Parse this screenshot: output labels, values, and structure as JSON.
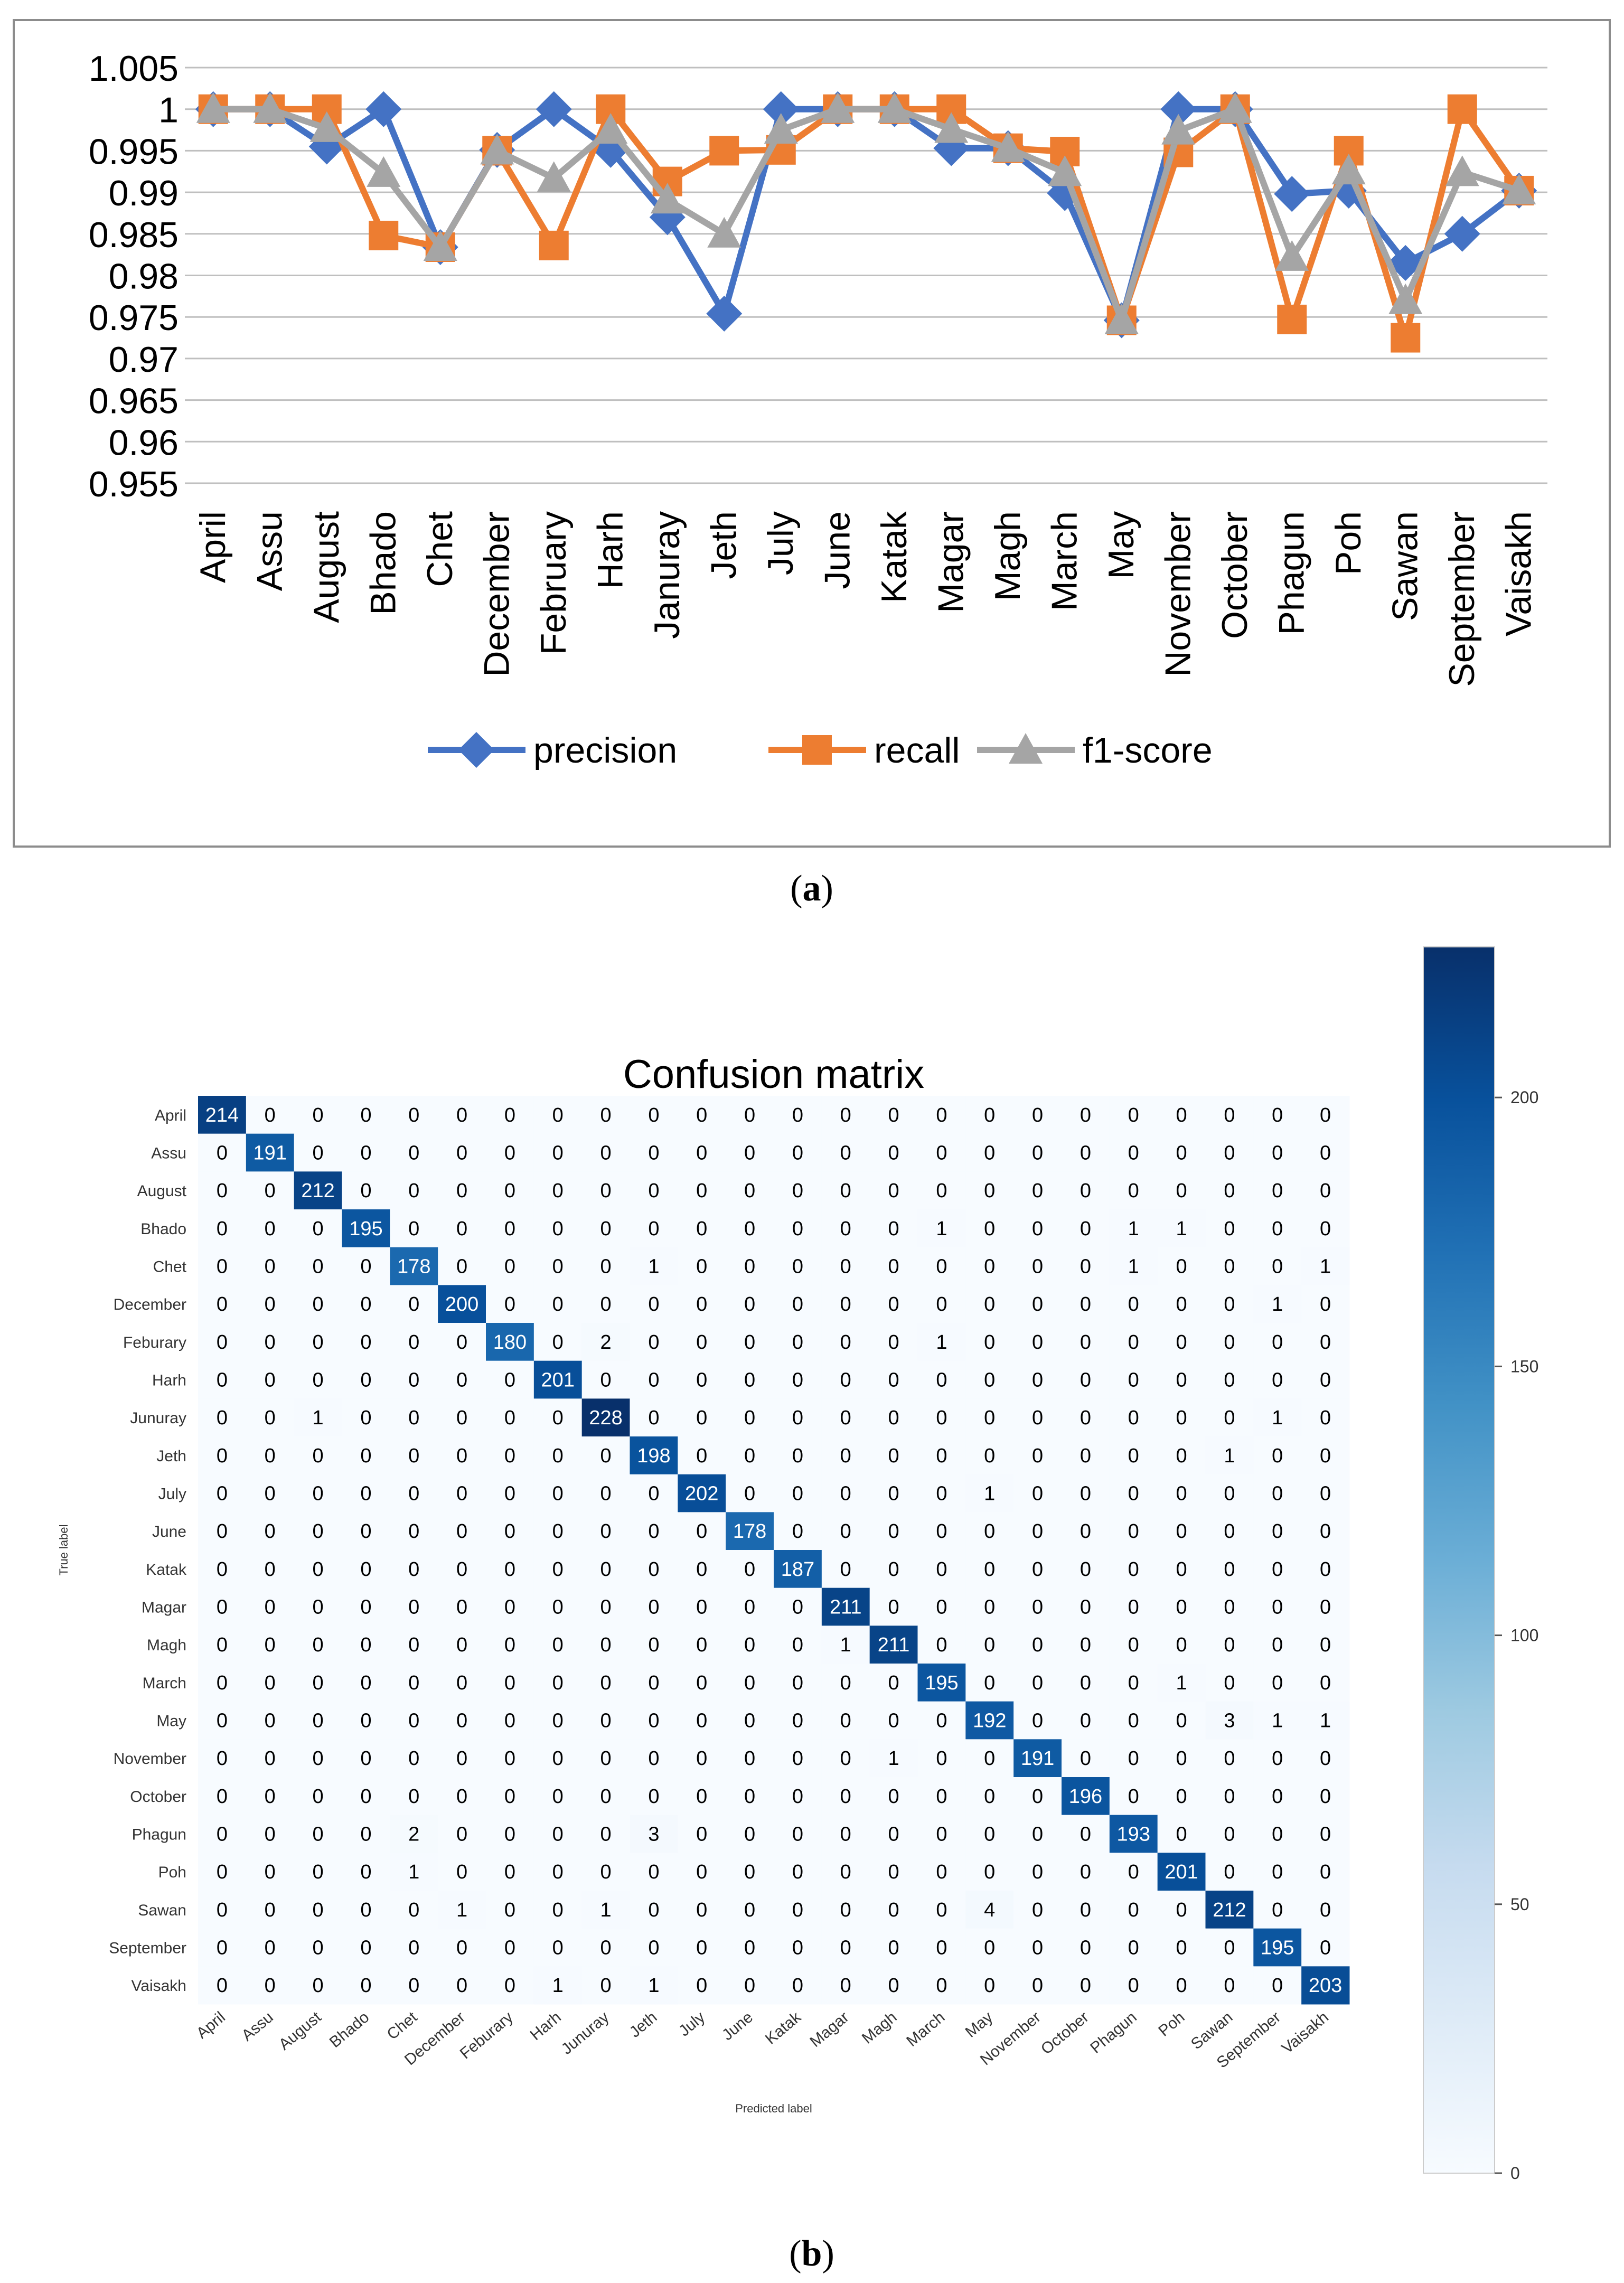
{
  "panel_a": {
    "caption_prefix": "(",
    "caption_letter": "a",
    "caption_suffix": ")"
  },
  "panel_b": {
    "caption_prefix": "(",
    "caption_letter": "b",
    "caption_suffix": ")"
  },
  "colors": {
    "precision": "#4472C4",
    "recall": "#ED7D31",
    "f1": "#A5A5A5",
    "gridline": "#BFBFBF",
    "frame": "#8C8C8C",
    "cm_low": "#F7FBFF",
    "cm_mid": "#6BAED6",
    "cm_high": "#08306B"
  },
  "chart_data": [
    {
      "type": "line",
      "title": "",
      "xlabel": "",
      "ylabel": "",
      "categories": [
        "April",
        "Assu",
        "August",
        "Bhado",
        "Chet",
        "December",
        "February",
        "Harh",
        "Januray",
        "Jeth",
        "July",
        "June",
        "Katak",
        "Magar",
        "Magh",
        "March",
        "May",
        "November",
        "October",
        "Phagun",
        "Poh",
        "Sawan",
        "September",
        "Vaisakh"
      ],
      "ylim": [
        0.955,
        1.005
      ],
      "yticks": [
        "0.955",
        "0.96",
        "0.965",
        "0.97",
        "0.975",
        "0.98",
        "0.985",
        "0.99",
        "0.995",
        "1",
        "1.005"
      ],
      "ytick_values": [
        0.955,
        0.96,
        0.965,
        0.97,
        0.975,
        0.98,
        0.985,
        0.99,
        0.995,
        1,
        1.005
      ],
      "grid": true,
      "legend_position": "bottom",
      "series": [
        {
          "name": "precision",
          "marker": "diamond",
          "values": [
            1,
            1,
            0.9955,
            1,
            0.9834,
            0.9951,
            1,
            0.9951,
            0.987,
            0.9754,
            1,
            1,
            1,
            0.9953,
            0.9953,
            0.9899,
            0.9746,
            1,
            1,
            0.9898,
            0.9902,
            0.9815,
            0.985,
            0.9902
          ]
        },
        {
          "name": "recall",
          "marker": "square",
          "values": [
            1,
            1,
            1,
            0.9848,
            0.9834,
            0.995,
            0.9836,
            1,
            0.9913,
            0.995,
            0.9951,
            1,
            1,
            1,
            0.9953,
            0.9949,
            0.9746,
            0.9948,
            1,
            0.9747,
            0.995,
            0.9725,
            1,
            0.9902
          ]
        },
        {
          "name": "f1-score",
          "marker": "triangle",
          "values": [
            1,
            1,
            0.9977,
            0.9923,
            0.9834,
            0.995,
            0.9917,
            0.9975,
            0.9891,
            0.985,
            0.9975,
            1,
            1,
            0.9976,
            0.9953,
            0.9924,
            0.9746,
            0.9974,
            1,
            0.9822,
            0.9926,
            0.977,
            0.9924,
            0.9902
          ]
        }
      ]
    },
    {
      "type": "heatmap",
      "title": "Confusion matrix",
      "xlabel": "Predicted label",
      "ylabel": "True label",
      "row_labels": [
        "April",
        "Assu",
        "August",
        "Bhado",
        "Chet",
        "December",
        "Feburary",
        "Harh",
        "Junuray",
        "Jeth",
        "July",
        "June",
        "Katak",
        "Magar",
        "Magh",
        "March",
        "May",
        "November",
        "October",
        "Phagun",
        "Poh",
        "Sawan",
        "September",
        "Vaisakh"
      ],
      "col_labels": [
        "April",
        "Assu",
        "August",
        "Bhado",
        "Chet",
        "December",
        "Feburary",
        "Harh",
        "Junuray",
        "Jeth",
        "July",
        "June",
        "Katak",
        "Magar",
        "Magh",
        "March",
        "May",
        "November",
        "October",
        "Phagun",
        "Poh",
        "Sawan",
        "September",
        "Vaisakh"
      ],
      "matrix": [
        [
          214,
          0,
          0,
          0,
          0,
          0,
          0,
          0,
          0,
          0,
          0,
          0,
          0,
          0,
          0,
          0,
          0,
          0,
          0,
          0,
          0,
          0,
          0,
          0
        ],
        [
          0,
          191,
          0,
          0,
          0,
          0,
          0,
          0,
          0,
          0,
          0,
          0,
          0,
          0,
          0,
          0,
          0,
          0,
          0,
          0,
          0,
          0,
          0,
          0
        ],
        [
          0,
          0,
          212,
          0,
          0,
          0,
          0,
          0,
          0,
          0,
          0,
          0,
          0,
          0,
          0,
          0,
          0,
          0,
          0,
          0,
          0,
          0,
          0,
          0
        ],
        [
          0,
          0,
          0,
          195,
          0,
          0,
          0,
          0,
          0,
          0,
          0,
          0,
          0,
          0,
          0,
          1,
          0,
          0,
          0,
          1,
          1,
          0,
          0,
          0
        ],
        [
          0,
          0,
          0,
          0,
          178,
          0,
          0,
          0,
          0,
          1,
          0,
          0,
          0,
          0,
          0,
          0,
          0,
          0,
          0,
          1,
          0,
          0,
          0,
          1
        ],
        [
          0,
          0,
          0,
          0,
          0,
          200,
          0,
          0,
          0,
          0,
          0,
          0,
          0,
          0,
          0,
          0,
          0,
          0,
          0,
          0,
          0,
          0,
          1,
          0
        ],
        [
          0,
          0,
          0,
          0,
          0,
          0,
          180,
          0,
          2,
          0,
          0,
          0,
          0,
          0,
          0,
          1,
          0,
          0,
          0,
          0,
          0,
          0,
          0,
          0
        ],
        [
          0,
          0,
          0,
          0,
          0,
          0,
          0,
          201,
          0,
          0,
          0,
          0,
          0,
          0,
          0,
          0,
          0,
          0,
          0,
          0,
          0,
          0,
          0,
          0
        ],
        [
          0,
          0,
          1,
          0,
          0,
          0,
          0,
          0,
          228,
          0,
          0,
          0,
          0,
          0,
          0,
          0,
          0,
          0,
          0,
          0,
          0,
          0,
          1,
          0
        ],
        [
          0,
          0,
          0,
          0,
          0,
          0,
          0,
          0,
          0,
          198,
          0,
          0,
          0,
          0,
          0,
          0,
          0,
          0,
          0,
          0,
          0,
          1,
          0,
          0
        ],
        [
          0,
          0,
          0,
          0,
          0,
          0,
          0,
          0,
          0,
          0,
          202,
          0,
          0,
          0,
          0,
          0,
          1,
          0,
          0,
          0,
          0,
          0,
          0,
          0
        ],
        [
          0,
          0,
          0,
          0,
          0,
          0,
          0,
          0,
          0,
          0,
          0,
          178,
          0,
          0,
          0,
          0,
          0,
          0,
          0,
          0,
          0,
          0,
          0,
          0
        ],
        [
          0,
          0,
          0,
          0,
          0,
          0,
          0,
          0,
          0,
          0,
          0,
          0,
          187,
          0,
          0,
          0,
          0,
          0,
          0,
          0,
          0,
          0,
          0,
          0
        ],
        [
          0,
          0,
          0,
          0,
          0,
          0,
          0,
          0,
          0,
          0,
          0,
          0,
          0,
          211,
          0,
          0,
          0,
          0,
          0,
          0,
          0,
          0,
          0,
          0
        ],
        [
          0,
          0,
          0,
          0,
          0,
          0,
          0,
          0,
          0,
          0,
          0,
          0,
          0,
          1,
          211,
          0,
          0,
          0,
          0,
          0,
          0,
          0,
          0,
          0
        ],
        [
          0,
          0,
          0,
          0,
          0,
          0,
          0,
          0,
          0,
          0,
          0,
          0,
          0,
          0,
          0,
          195,
          0,
          0,
          0,
          0,
          1,
          0,
          0,
          0
        ],
        [
          0,
          0,
          0,
          0,
          0,
          0,
          0,
          0,
          0,
          0,
          0,
          0,
          0,
          0,
          0,
          0,
          192,
          0,
          0,
          0,
          0,
          3,
          1,
          1
        ],
        [
          0,
          0,
          0,
          0,
          0,
          0,
          0,
          0,
          0,
          0,
          0,
          0,
          0,
          0,
          1,
          0,
          0,
          191,
          0,
          0,
          0,
          0,
          0,
          0
        ],
        [
          0,
          0,
          0,
          0,
          0,
          0,
          0,
          0,
          0,
          0,
          0,
          0,
          0,
          0,
          0,
          0,
          0,
          0,
          196,
          0,
          0,
          0,
          0,
          0
        ],
        [
          0,
          0,
          0,
          0,
          2,
          0,
          0,
          0,
          0,
          3,
          0,
          0,
          0,
          0,
          0,
          0,
          0,
          0,
          0,
          193,
          0,
          0,
          0,
          0
        ],
        [
          0,
          0,
          0,
          0,
          1,
          0,
          0,
          0,
          0,
          0,
          0,
          0,
          0,
          0,
          0,
          0,
          0,
          0,
          0,
          0,
          201,
          0,
          0,
          0
        ],
        [
          0,
          0,
          0,
          0,
          0,
          1,
          0,
          0,
          1,
          0,
          0,
          0,
          0,
          0,
          0,
          0,
          4,
          0,
          0,
          0,
          0,
          212,
          0,
          0
        ],
        [
          0,
          0,
          0,
          0,
          0,
          0,
          0,
          0,
          0,
          0,
          0,
          0,
          0,
          0,
          0,
          0,
          0,
          0,
          0,
          0,
          0,
          0,
          195,
          0
        ],
        [
          0,
          0,
          0,
          0,
          0,
          0,
          0,
          1,
          0,
          1,
          0,
          0,
          0,
          0,
          0,
          0,
          0,
          0,
          0,
          0,
          0,
          0,
          0,
          203
        ]
      ],
      "colorbar": {
        "min": 0,
        "max": 228,
        "ticks": [
          0,
          50,
          100,
          150,
          200
        ]
      }
    }
  ]
}
